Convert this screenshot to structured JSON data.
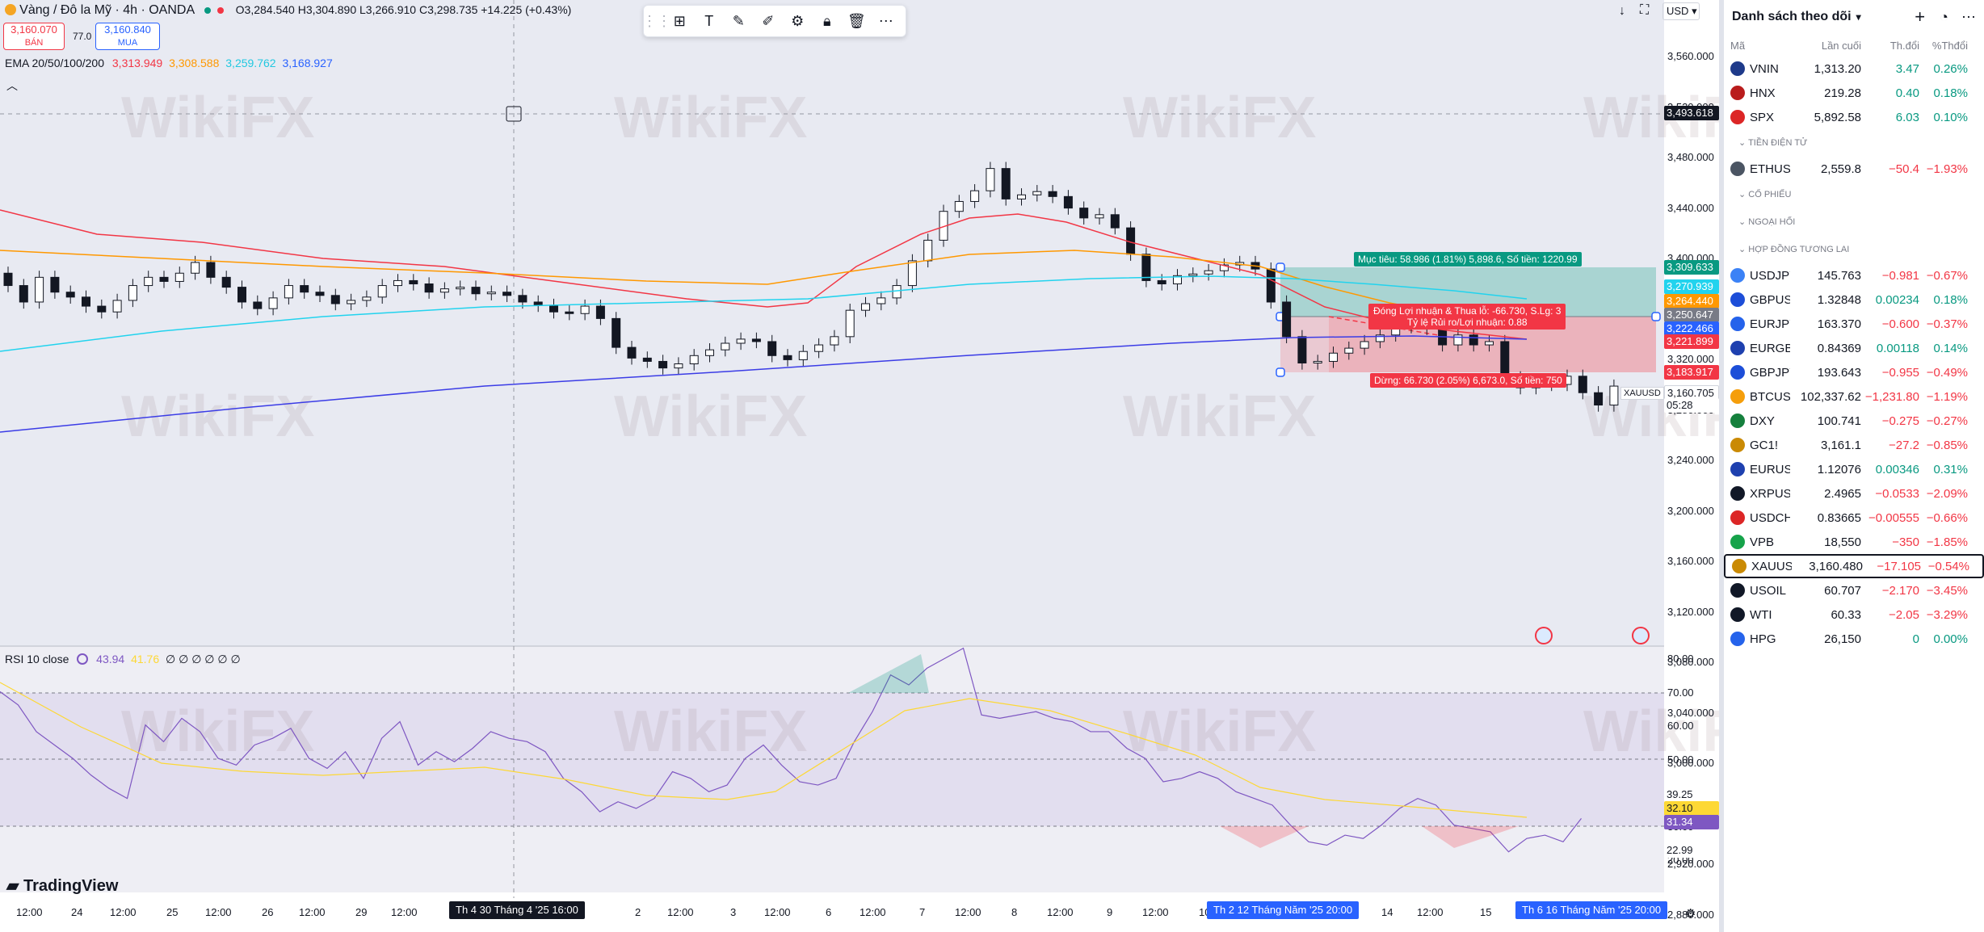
{
  "header": {
    "title": "Vàng / Đô la Mỹ · 4h · OANDA",
    "ohlc": "O3,284.540 H3,304.890 L3,266.910 C3,298.735 +14.225 (+0.43%)",
    "currency": "USD"
  },
  "sell": {
    "price": "3,160.070",
    "label": "BÁN"
  },
  "spread": "77.0",
  "buy": {
    "price": "3,160.840",
    "label": "MUA"
  },
  "ema": {
    "label": "EMA 20/50/100/200",
    "v1": "3,313.949",
    "v2": "3,308.588",
    "v3": "3,259.762",
    "v4": "3,168.927",
    "c1": "#f23645",
    "c2": "#ff9800",
    "c3": "#22d3ee",
    "c4": "#2962ff"
  },
  "rsi": {
    "label": "RSI 10 close",
    "v1": "43.94",
    "v2": "41.76",
    "rest": "∅ ∅ ∅ ∅ ∅ ∅"
  },
  "targets": {
    "profit": "Mục tiêu: 58.986 (1.81%) 5,898.6, Số tiền: 1220.99",
    "open": "Đóng Lợi nhuận & Thua lỗ: -66.730, S.Lg: 3",
    "ratio": "Tỷ lệ Rủi ro/Lợi nhuận: 0.88",
    "stop": "Dừng: 66.730 (2.05%) 6,673.0, Số tiền: 750"
  },
  "price_axis": [
    "3,560.000",
    "3,520.000",
    "3,480.000",
    "3,440.000",
    "3,400.000",
    "3,360.000",
    "3,320.000",
    "3,280.000",
    "3,240.000",
    "3,200.000",
    "3,160.000",
    "3,120.000",
    "3,080.000",
    "3,040.000",
    "3,000.000",
    "2,960.000",
    "2,920.000",
    "2,880.000"
  ],
  "rsi_axis": [
    "80.00",
    "70.00",
    "60.00",
    "50.00",
    "40.00",
    "30.00",
    "20.00"
  ],
  "price_tags": {
    "crosshair": "3,493.618",
    "t1": "3,309.633",
    "t2": "3,270.939",
    "t3": "3,264.440",
    "t4": "3,250.647",
    "t5": "3,222.466",
    "t6": "3,221.899",
    "t7": "3,183.917",
    "cur": "3,160.705",
    "timer": "05:28",
    "symbol": "XAUUSD",
    "r1": "39.25",
    "r2": "32.10",
    "r3": "31.34",
    "r4": "22.99"
  },
  "time_axis": [
    "12:00",
    "24",
    "12:00",
    "25",
    "12:00",
    "26",
    "12:00",
    "29",
    "12:00",
    "2",
    "12:00",
    "3",
    "12:00",
    "6",
    "12:00",
    "7",
    "12:00",
    "8",
    "12:00",
    "9",
    "12:00",
    "10",
    "14",
    "12:00",
    "15"
  ],
  "time_hl": {
    "a": "Th 4 30 Tháng 4 '25   16:00",
    "b": "Th 2 12 Tháng Năm '25   20:00",
    "c": "Th 6 16 Tháng Năm '25   20:00"
  },
  "brand": "TradingView",
  "watermark": "WikiFX",
  "panel": {
    "title": "Danh sách theo dõi",
    "cols": {
      "sym": "Mã",
      "last": "Lần cuối",
      "chg": "Th.đổi",
      "pct": "%Thđổi"
    },
    "sections": {
      "crypto": "TIỀN ĐIỆN TỬ",
      "stock": "CỔ PHIẾU",
      "fx": "NGOẠI HỐI",
      "futures": "HỢP ĐỒNG TƯƠNG LAI"
    },
    "rows": [
      {
        "sym": "VNIN",
        "last": "1,313.20",
        "chg": "3.47",
        "pct": "0.26%",
        "dir": "up",
        "ic": "#1e3a8a"
      },
      {
        "sym": "HNX",
        "last": "219.28",
        "chg": "0.40",
        "pct": "0.18%",
        "dir": "up",
        "ic": "#b91c1c"
      },
      {
        "sym": "SPX",
        "last": "5,892.58",
        "chg": "6.03",
        "pct": "0.10%",
        "dir": "up",
        "ic": "#dc2626"
      },
      {
        "sym": "ETHUSI",
        "last": "2,559.8",
        "chg": "−50.4",
        "pct": "−1.93%",
        "dir": "down",
        "ic": "#4b5563"
      },
      {
        "sym": "USDJPY",
        "last": "145.763",
        "chg": "−0.981",
        "pct": "−0.67%",
        "dir": "down",
        "ic": "#3b82f6"
      },
      {
        "sym": "GBPUSI",
        "last": "1.32848",
        "chg": "0.00234",
        "pct": "0.18%",
        "dir": "up",
        "ic": "#1d4ed8"
      },
      {
        "sym": "EURJPY",
        "last": "163.370",
        "chg": "−0.600",
        "pct": "−0.37%",
        "dir": "down",
        "ic": "#2563eb"
      },
      {
        "sym": "EURGBI",
        "last": "0.84369",
        "chg": "0.00118",
        "pct": "0.14%",
        "dir": "up",
        "ic": "#1e40af"
      },
      {
        "sym": "GBPJPY",
        "last": "193.643",
        "chg": "−0.955",
        "pct": "−0.49%",
        "dir": "down",
        "ic": "#1d4ed8"
      },
      {
        "sym": "BTCUSI",
        "last": "102,337.62",
        "chg": "−1,231.80",
        "pct": "−1.19%",
        "dir": "down",
        "ic": "#f59e0b"
      },
      {
        "sym": "DXY",
        "last": "100.741",
        "chg": "−0.275",
        "pct": "−0.27%",
        "dir": "down",
        "ic": "#15803d"
      },
      {
        "sym": "GC1!",
        "last": "3,161.1",
        "chg": "−27.2",
        "pct": "−0.85%",
        "dir": "down",
        "ic": "#ca8a04"
      },
      {
        "sym": "EURUSI",
        "last": "1.12076",
        "chg": "0.00346",
        "pct": "0.31%",
        "dir": "up",
        "ic": "#1e40af"
      },
      {
        "sym": "XRPUSI",
        "last": "2.4965",
        "chg": "−0.0533",
        "pct": "−2.09%",
        "dir": "down",
        "ic": "#111827"
      },
      {
        "sym": "USDCHI",
        "last": "0.83665",
        "chg": "−0.00555",
        "pct": "−0.66%",
        "dir": "down",
        "ic": "#dc2626"
      },
      {
        "sym": "VPB",
        "last": "18,550",
        "chg": "−350",
        "pct": "−1.85%",
        "dir": "down",
        "ic": "#16a34a"
      },
      {
        "sym": "XAUUSI",
        "last": "3,160.480",
        "chg": "−17.105",
        "pct": "−0.54%",
        "dir": "down",
        "ic": "#ca8a04",
        "sel": true
      },
      {
        "sym": "USOIL",
        "last": "60.707",
        "chg": "−2.170",
        "pct": "−3.45%",
        "dir": "down",
        "ic": "#111827"
      },
      {
        "sym": "WTI",
        "last": "60.33",
        "chg": "−2.05",
        "pct": "−3.29%",
        "dir": "down",
        "ic": "#111827"
      },
      {
        "sym": "HPG",
        "last": "26,150",
        "chg": "0",
        "pct": "0.00%",
        "dir": "flat",
        "ic": "#2563eb"
      }
    ]
  }
}
